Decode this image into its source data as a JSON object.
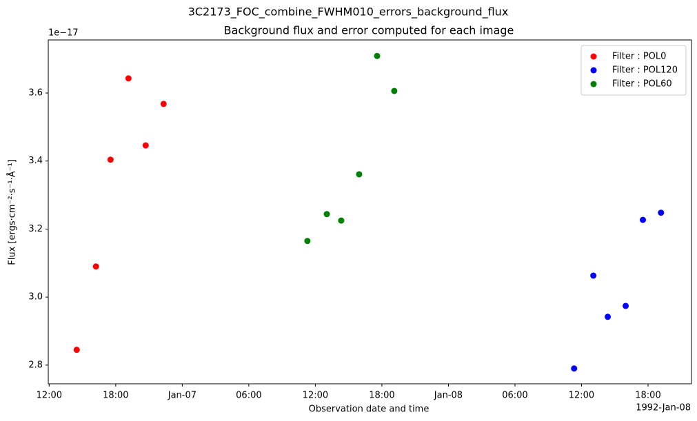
{
  "chart_data": {
    "type": "scatter",
    "suptitle": "3C2173_FOC_combine_FWHM010_errors_background_flux",
    "title": "Background flux and error computed for each image",
    "x_label": "Observation date and time",
    "y_label": "Flux [ergs·cm⁻²·s⁻¹·Å⁻¹]",
    "x_offset_label": "1992-Jan-08",
    "y_offset_label": "1e−17",
    "xlim": [
      "1992-01-06T11:55",
      "1992-01-08T21:55"
    ],
    "ylim": [
      2.745e-17,
      3.756e-17
    ],
    "xticks": [
      {
        "value": "1992-01-06T12:00",
        "label": "12:00"
      },
      {
        "value": "1992-01-06T18:00",
        "label": "18:00"
      },
      {
        "value": "1992-01-07T00:00",
        "label": "Jan-07"
      },
      {
        "value": "1992-01-07T06:00",
        "label": "06:00"
      },
      {
        "value": "1992-01-07T12:00",
        "label": "12:00"
      },
      {
        "value": "1992-01-07T18:00",
        "label": "18:00"
      },
      {
        "value": "1992-01-08T00:00",
        "label": "Jan-08"
      },
      {
        "value": "1992-01-08T06:00",
        "label": "06:00"
      },
      {
        "value": "1992-01-08T12:00",
        "label": "12:00"
      },
      {
        "value": "1992-01-08T18:00",
        "label": "18:00"
      }
    ],
    "yticks": [
      {
        "value": 2.8e-17,
        "label": "2.8"
      },
      {
        "value": 3e-17,
        "label": "3.0"
      },
      {
        "value": 3.2e-17,
        "label": "3.2"
      },
      {
        "value": 3.4e-17,
        "label": "3.4"
      },
      {
        "value": 3.6e-17,
        "label": "3.6"
      }
    ],
    "legend": "upper right",
    "series": [
      {
        "name": "Filter : POL0",
        "color": "#ff0000",
        "x": [
          "1992-01-06T14:29",
          "1992-01-06T16:13",
          "1992-01-06T17:32",
          "1992-01-06T19:09",
          "1992-01-06T20:42",
          "1992-01-06T22:19"
        ],
        "values": [
          2.845e-17,
          3.09e-17,
          3.404e-17,
          3.643e-17,
          3.446e-17,
          3.568e-17
        ]
      },
      {
        "name": "Filter : POL120",
        "color": "#0000ff",
        "x": [
          "1992-01-08T11:20",
          "1992-01-08T13:04",
          "1992-01-08T14:22",
          "1992-01-08T15:59",
          "1992-01-08T17:32",
          "1992-01-08T19:10"
        ],
        "values": [
          2.79e-17,
          3.063e-17,
          2.942e-17,
          2.974e-17,
          3.227e-17,
          3.248e-17
        ]
      },
      {
        "name": "Filter : POL60",
        "color": "#008000",
        "x": [
          "1992-01-07T11:17",
          "1992-01-07T13:02",
          "1992-01-07T14:20",
          "1992-01-07T15:57",
          "1992-01-07T17:34",
          "1992-01-07T19:07"
        ],
        "values": [
          3.165e-17,
          3.244e-17,
          3.225e-17,
          3.361e-17,
          3.709e-17,
          3.606e-17
        ]
      }
    ]
  }
}
